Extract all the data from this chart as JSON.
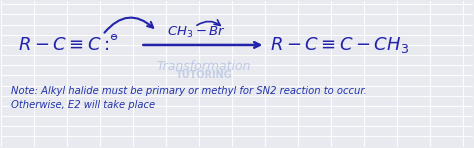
{
  "bg_color": "#e8eaf0",
  "grid_color": "#ffffff",
  "dark_blue": "#2222aa",
  "text_color": "#2233aa",
  "watermark_color": "#aabbdd",
  "neg_charge": "⊖",
  "note_line1": "Note: Alkyl halide must be primary or methyl for SN2 reaction to occur.",
  "note_line2": "Otherwise, E2 will take place",
  "watermark1": "Transformation",
  "watermark2": "TUTORING",
  "fig_width": 4.74,
  "fig_height": 1.48
}
